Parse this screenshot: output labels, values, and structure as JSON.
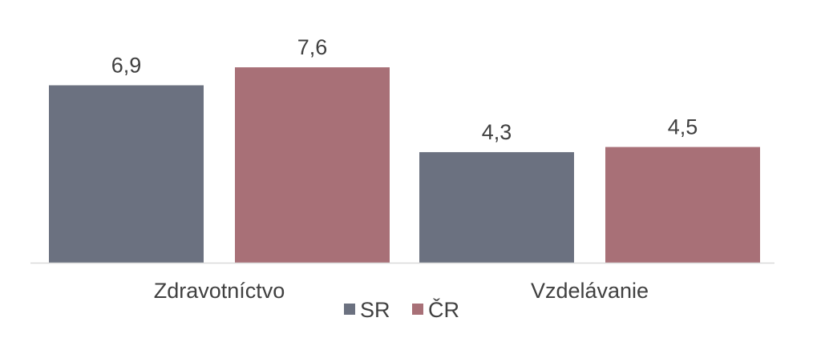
{
  "chart_data": {
    "type": "bar",
    "categories": [
      "Zdravotníctvo",
      "Vzdelávanie"
    ],
    "series": [
      {
        "name": "SR",
        "values": [
          6.9,
          4.3
        ],
        "labels": [
          "6,9",
          "4,3"
        ],
        "color": "#6b7180"
      },
      {
        "name": "ČR",
        "values": [
          7.6,
          4.5
        ],
        "labels": [
          "7,6",
          "4,5"
        ],
        "color": "#a87077"
      }
    ],
    "ylim": [
      0,
      8.5
    ],
    "grid": false,
    "legend_position": "bottom",
    "baseline_color": "#d9d9d9"
  }
}
